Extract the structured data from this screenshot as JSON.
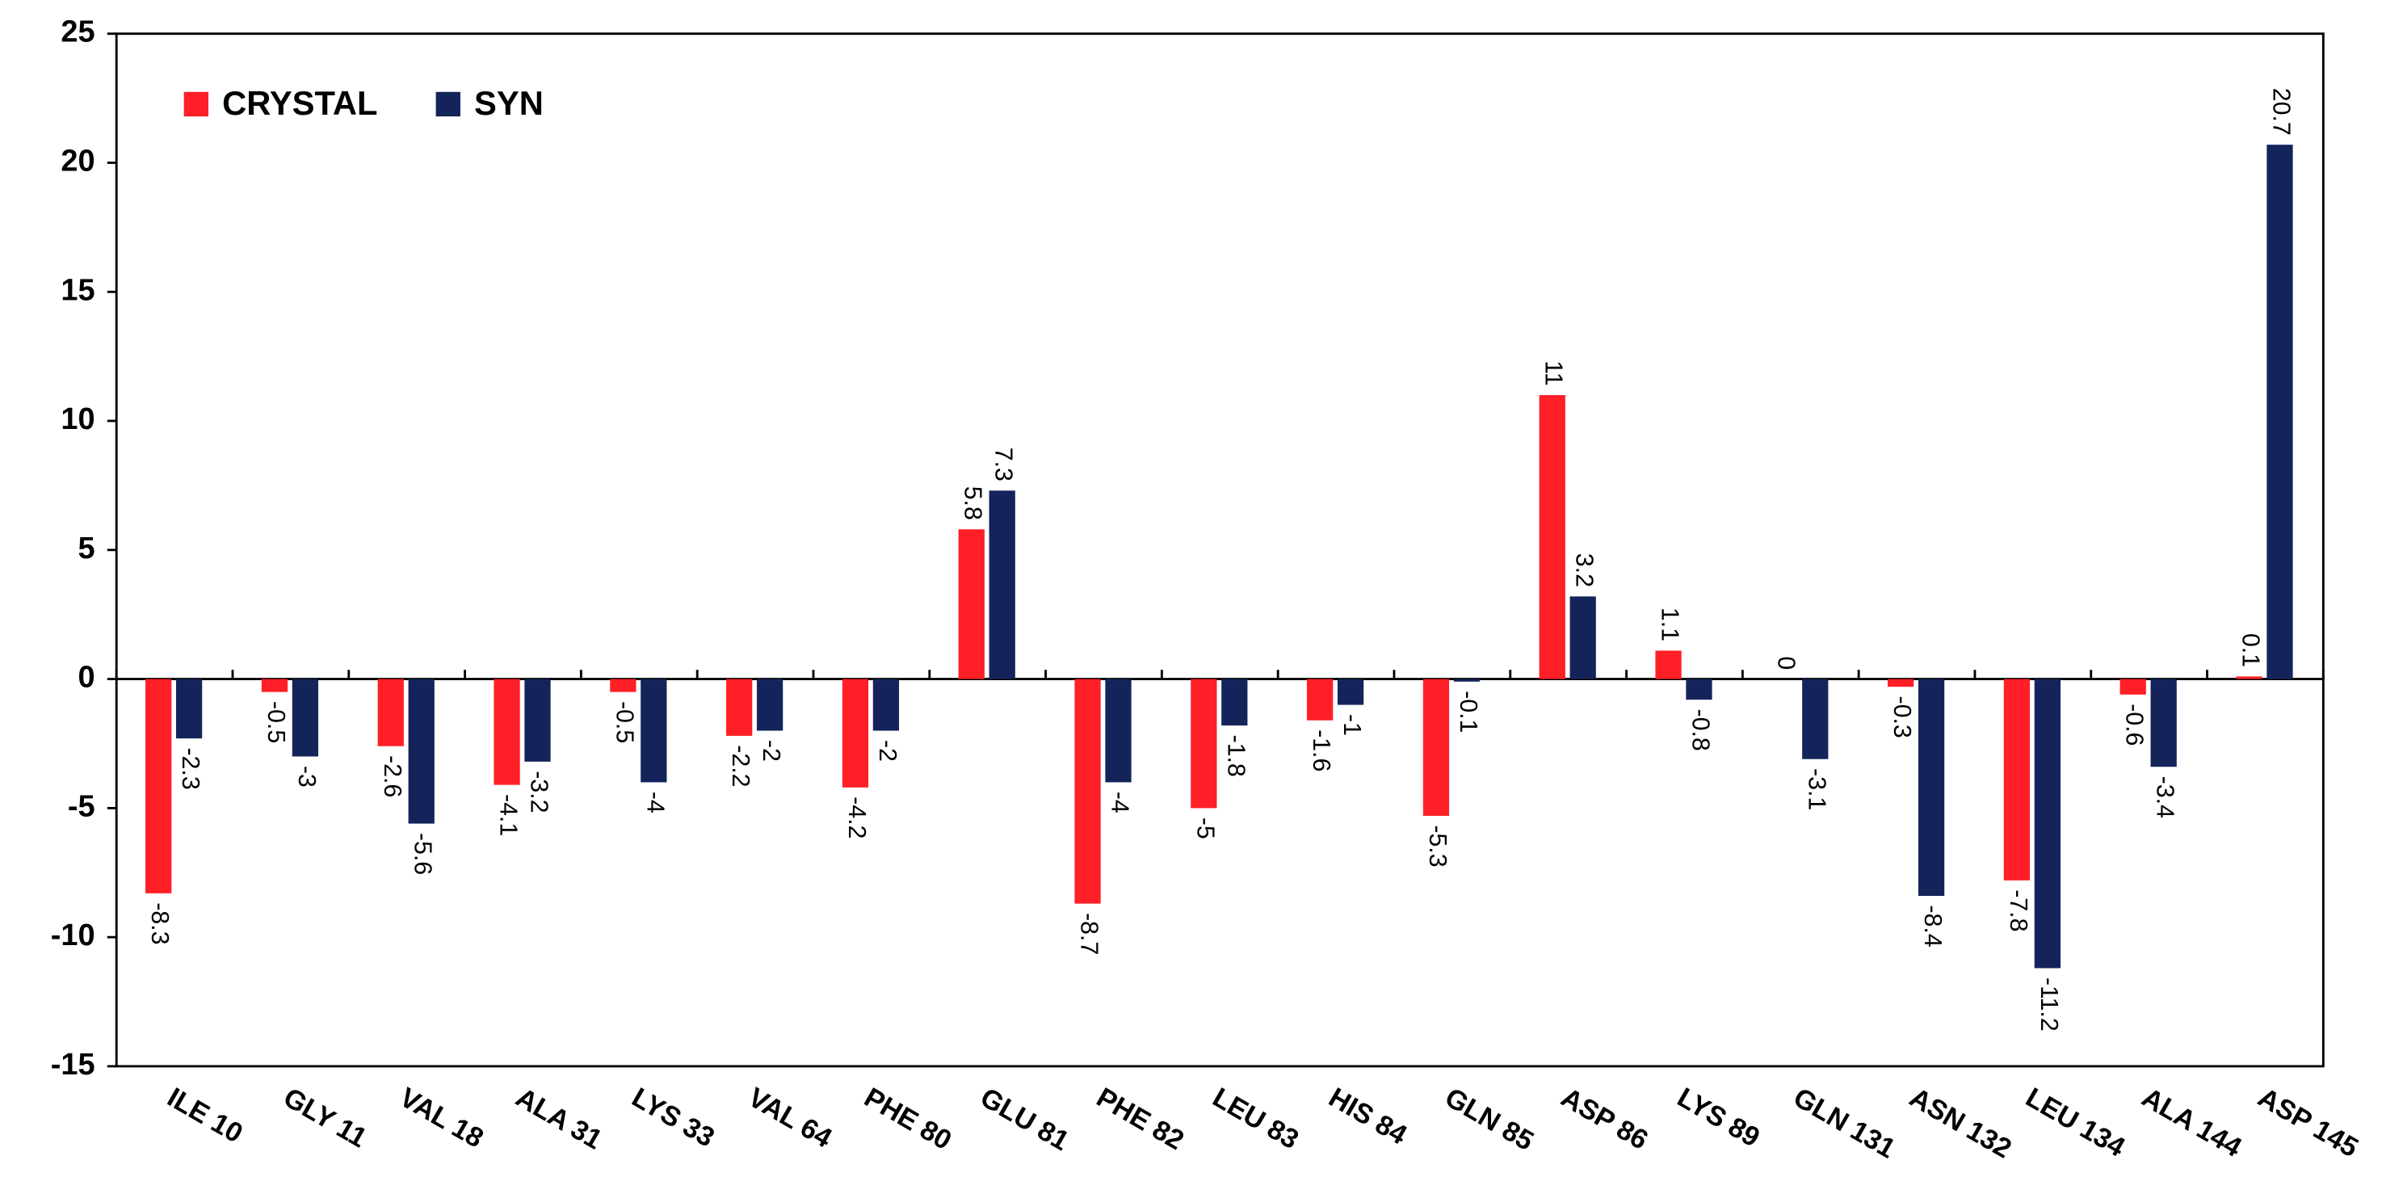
{
  "chart_data": {
    "type": "bar",
    "categories": [
      "ILE 10",
      "GLY 11",
      "VAL 18",
      "ALA 31",
      "LYS 33",
      "VAL 64",
      "PHE 80",
      "GLU 81",
      "PHE 82",
      "LEU 83",
      "HIS 84",
      "GLN 85",
      "ASP 86",
      "LYS 89",
      "GLN 131",
      "ASN 132",
      "LEU 134",
      "ALA 144",
      "ASP 145"
    ],
    "series": [
      {
        "name": "CRYSTAL",
        "color": "#ff1f26",
        "values": [
          -8.3,
          -0.5,
          -2.6,
          -4.1,
          -0.5,
          -2.2,
          -4.2,
          5.8,
          -8.7,
          -5,
          -1.6,
          -5.3,
          11,
          1.1,
          0,
          -0.3,
          -7.8,
          -0.6,
          0.1
        ]
      },
      {
        "name": "SYN",
        "color": "#14245a",
        "values": [
          -2.3,
          -3,
          -5.6,
          -3.2,
          -4,
          -2,
          -2,
          7.3,
          -4,
          -1.8,
          -1,
          -0.1,
          3.2,
          -0.8,
          -3.1,
          -8.4,
          -11.2,
          -3.4,
          20.7
        ]
      }
    ],
    "ylim": [
      -15,
      25
    ],
    "yticks": [
      -15,
      -10,
      -5,
      0,
      5,
      10,
      15,
      20,
      25
    ],
    "legend": "top-left",
    "data_labels": true
  }
}
